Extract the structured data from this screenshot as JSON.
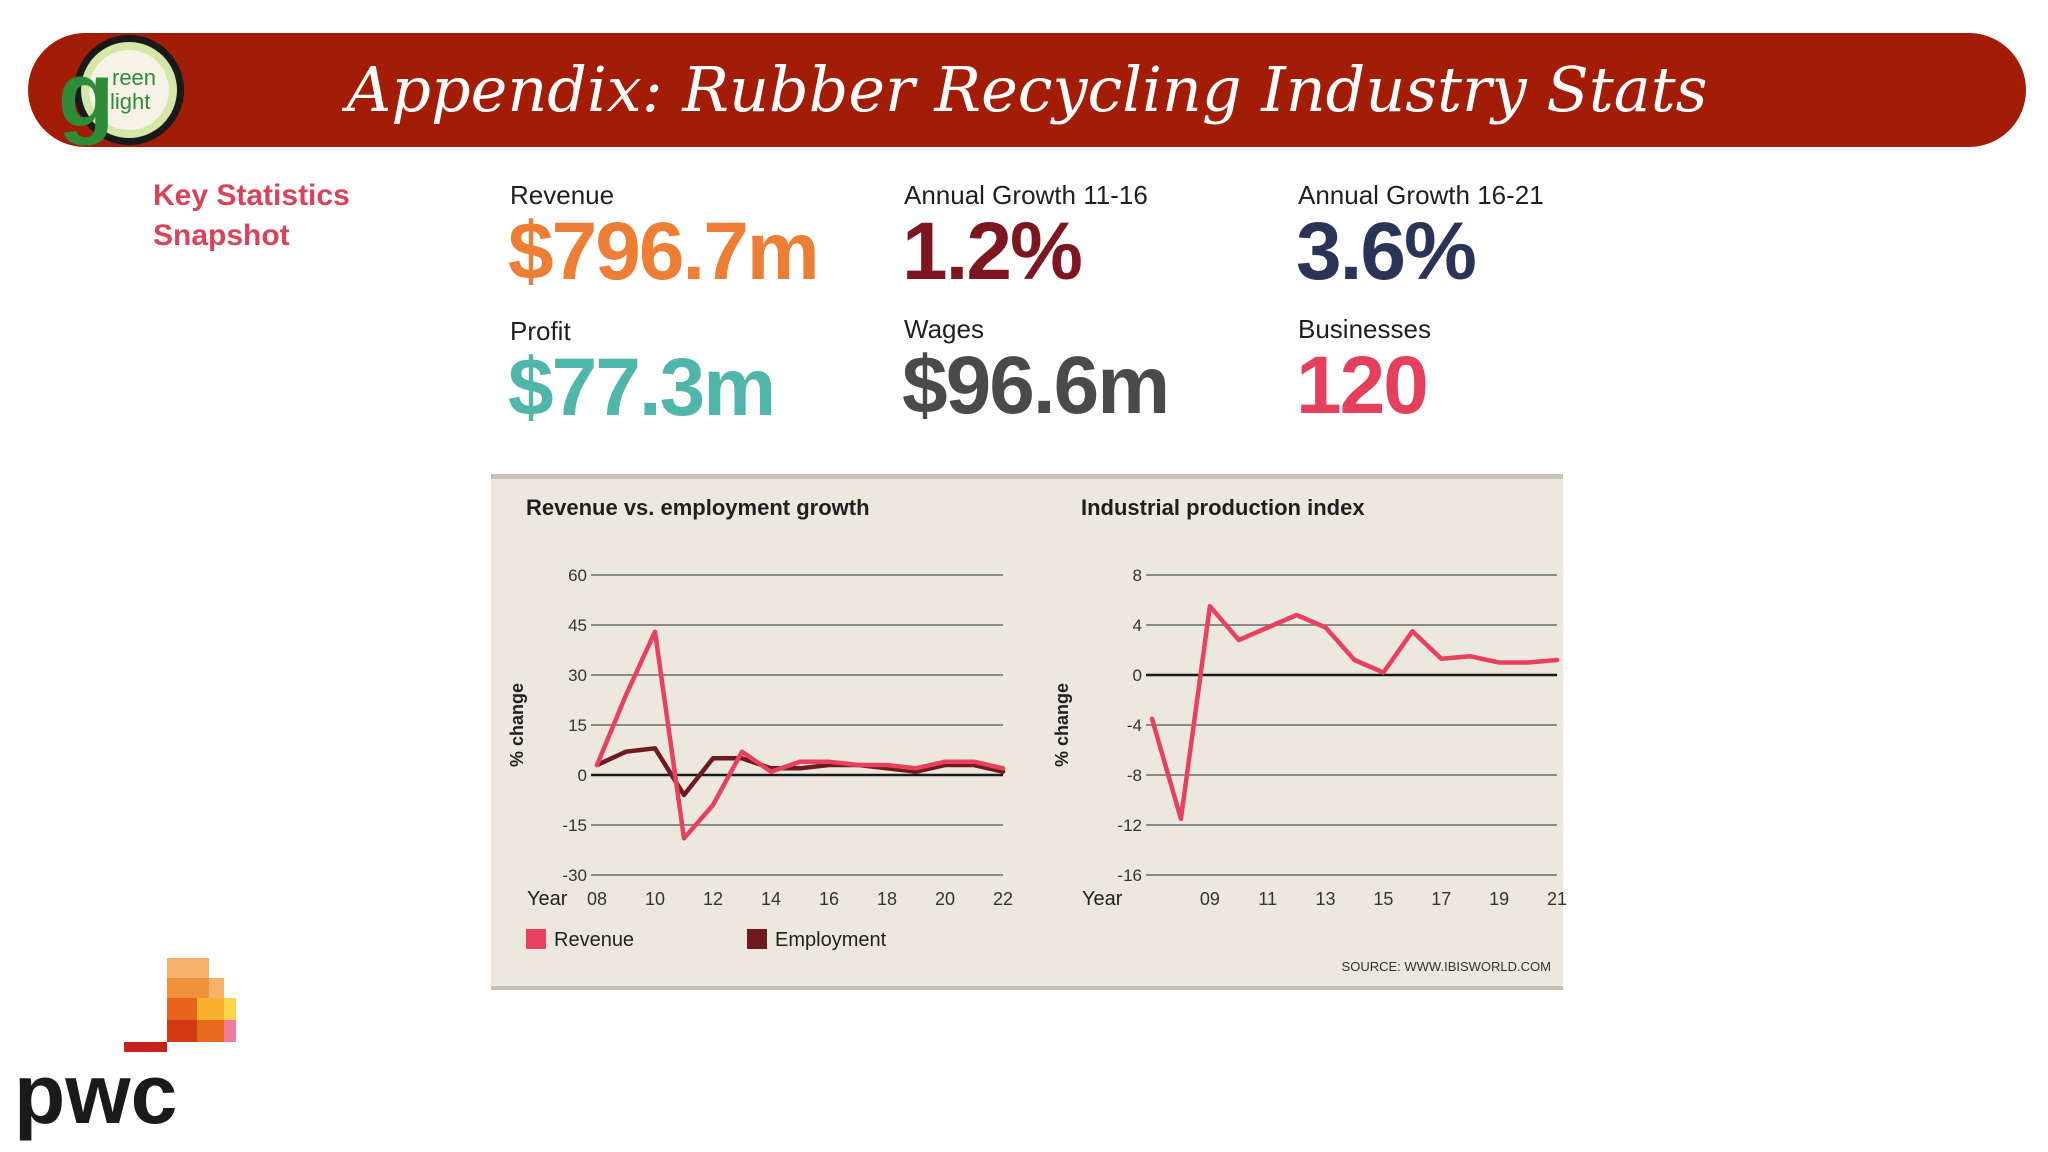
{
  "header": {
    "title": "Appendix: Rubber Recycling Industry Stats",
    "logo_text_top": "reen",
    "logo_text_bottom": "light",
    "logo_letter": "g"
  },
  "key_stats": {
    "label_line1": "Key Statistics",
    "label_line2": "Snapshot",
    "items": [
      {
        "label": "Revenue",
        "value": "$796.7m",
        "color": "#ee7d36"
      },
      {
        "label": "Annual Growth 11-16",
        "value": "1.2%",
        "color": "#7d1620"
      },
      {
        "label": "Annual Growth 16-21",
        "value": "3.6%",
        "color": "#2a3457"
      },
      {
        "label": "Profit",
        "value": "$77.3m",
        "color": "#4fb6a9"
      },
      {
        "label": "Wages",
        "value": "$96.6m",
        "color": "#4a4a4a"
      },
      {
        "label": "Businesses",
        "value": "120",
        "color": "#e4405d"
      }
    ]
  },
  "source": "SOURCE: WWW.IBISWORLD.COM",
  "footer_logo": "pwc",
  "chart_data": [
    {
      "type": "line",
      "title": "Revenue vs. employment growth",
      "ylabel": "% change",
      "xlabel": "Year",
      "ylim": [
        -30,
        60
      ],
      "yticks": [
        60,
        45,
        30,
        15,
        0,
        -15,
        -30
      ],
      "xlim": [
        2008,
        2022
      ],
      "xticks": [
        2008,
        2010,
        2012,
        2014,
        2016,
        2018,
        2020,
        2022
      ],
      "xtick_labels": [
        "08",
        "10",
        "12",
        "14",
        "16",
        "18",
        "20",
        "22"
      ],
      "grid": true,
      "legend": "bottom",
      "series": [
        {
          "name": "Revenue",
          "color": "#e8405e",
          "x": [
            2008,
            2009,
            2010,
            2011,
            2012,
            2013,
            2014,
            2015,
            2016,
            2017,
            2018,
            2019,
            2020,
            2021,
            2022
          ],
          "values": [
            3,
            24,
            43,
            -19,
            -9,
            7,
            1,
            4,
            4,
            3,
            3,
            2,
            4,
            4,
            2
          ]
        },
        {
          "name": "Employment",
          "color": "#6e1a1e",
          "x": [
            2008,
            2009,
            2010,
            2011,
            2012,
            2013,
            2014,
            2015,
            2016,
            2017,
            2018,
            2019,
            2020,
            2021,
            2022
          ],
          "values": [
            3,
            7,
            8,
            -6,
            5,
            5,
            2,
            2,
            3,
            3,
            2,
            1,
            3,
            3,
            1
          ]
        }
      ]
    },
    {
      "type": "line",
      "title": "Industrial production index",
      "ylabel": "% change",
      "xlabel": "Year",
      "ylim": [
        -16,
        8
      ],
      "yticks": [
        8,
        4,
        0,
        -4,
        -8,
        -12,
        -16
      ],
      "xlim": [
        2007,
        2021
      ],
      "xticks": [
        2009,
        2011,
        2013,
        2015,
        2017,
        2019,
        2021
      ],
      "xtick_labels": [
        "09",
        "11",
        "13",
        "15",
        "17",
        "19",
        "21"
      ],
      "grid": true,
      "series": [
        {
          "color": "#e8405e",
          "x": [
            2007,
            2008,
            2009,
            2010,
            2011,
            2012,
            2013,
            2014,
            2015,
            2016,
            2017,
            2018,
            2019,
            2020,
            2021
          ],
          "values": [
            -3.5,
            -11.5,
            5.5,
            2.8,
            3.8,
            4.8,
            3.8,
            1.2,
            0.2,
            3.5,
            1.3,
            1.5,
            1.0,
            1.0,
            1.2
          ]
        }
      ]
    }
  ]
}
